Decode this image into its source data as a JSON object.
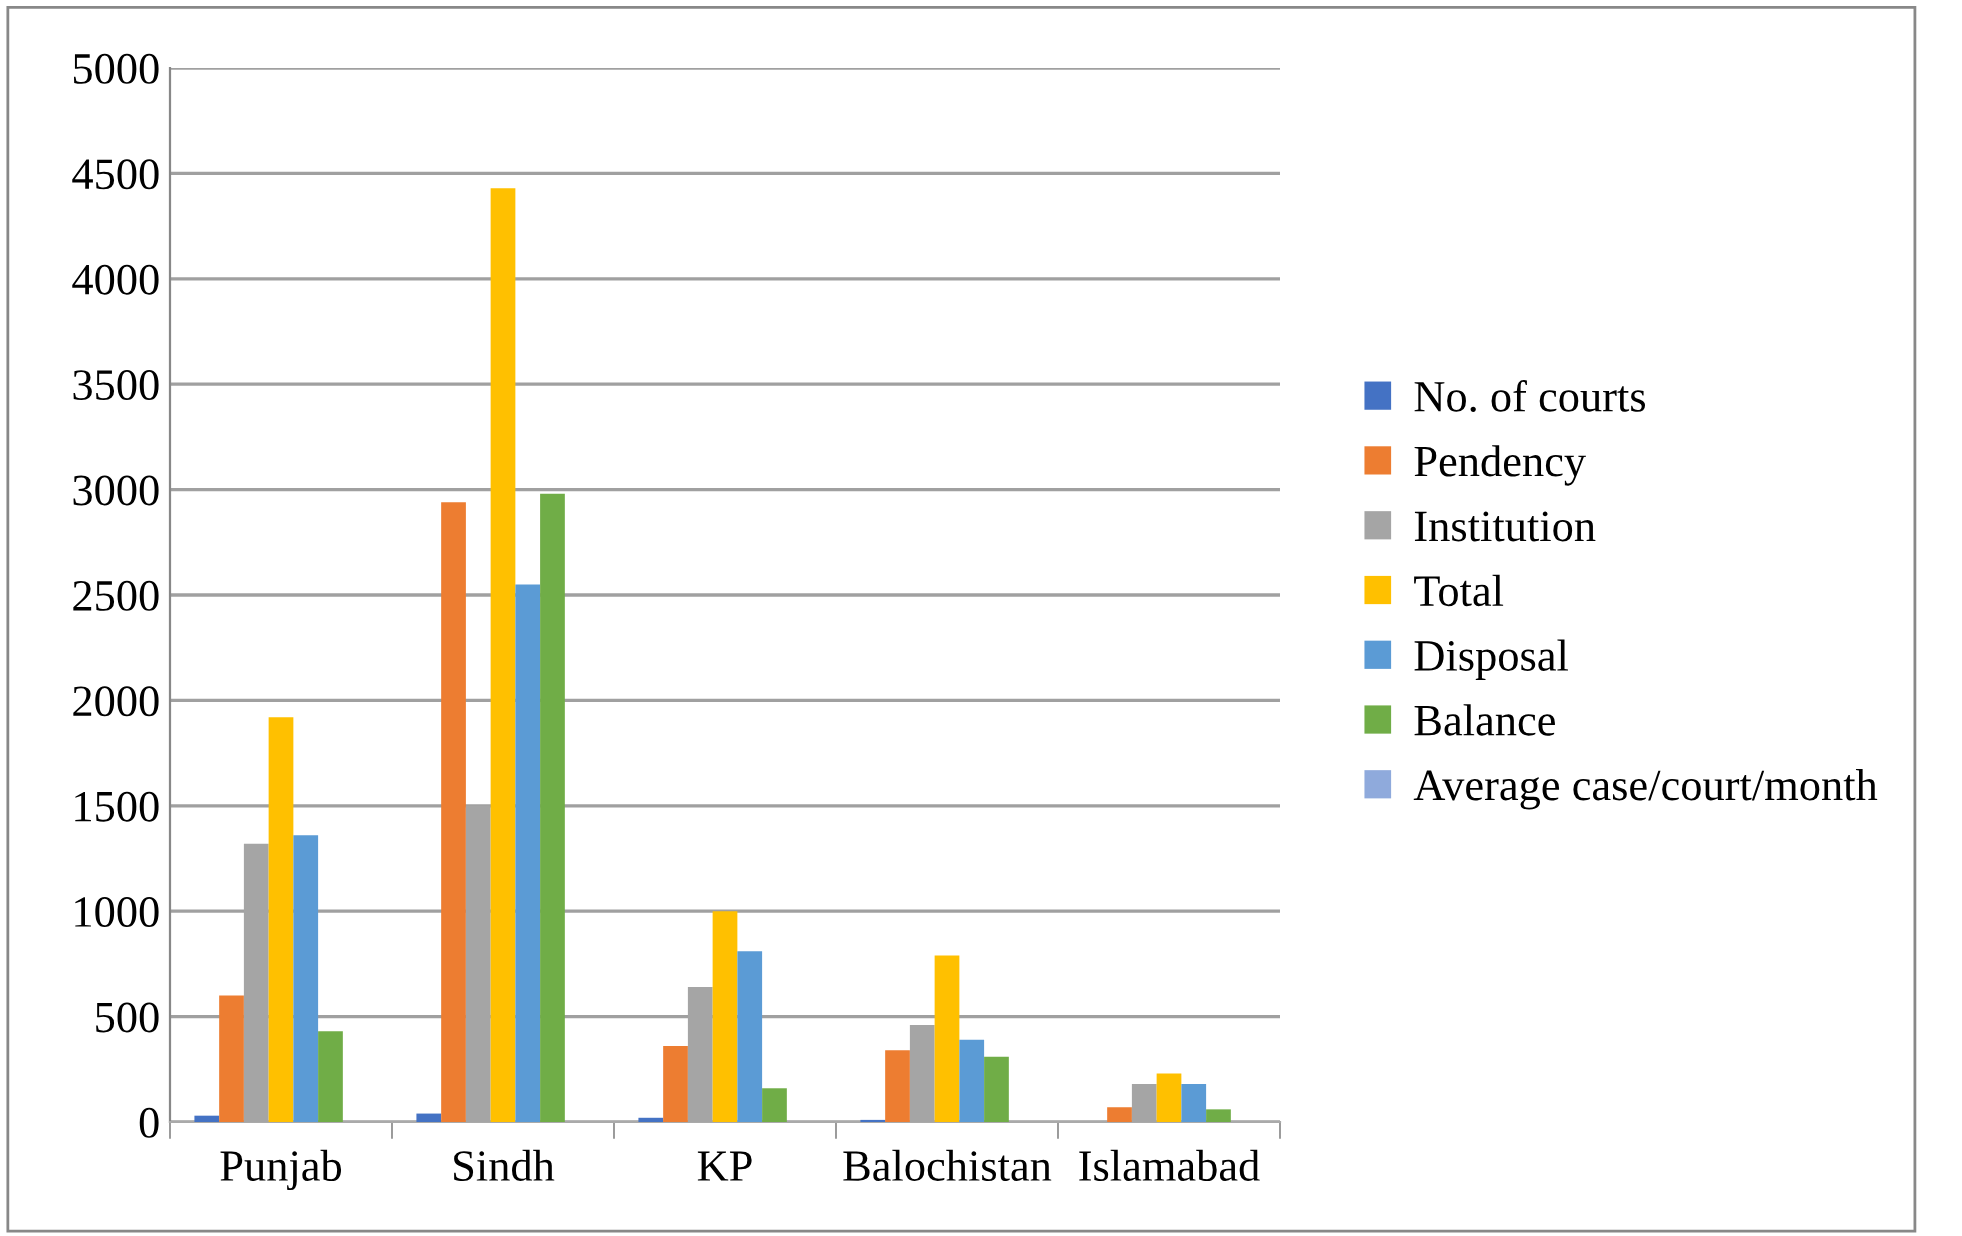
{
  "chart_data": {
    "type": "bar",
    "categories": [
      "Punjab",
      "Sindh",
      "KP",
      "Balochistan",
      "Islamabad"
    ],
    "series": [
      {
        "name": "No. of courts",
        "color": "#4472c4",
        "values": [
          30,
          40,
          20,
          10,
          null
        ]
      },
      {
        "name": "Pendency",
        "color": "#ed7d31",
        "values": [
          600,
          2940,
          360,
          340,
          70
        ]
      },
      {
        "name": "Institution",
        "color": "#a5a5a5",
        "values": [
          1320,
          1500,
          640,
          460,
          180
        ]
      },
      {
        "name": "Total",
        "color": "#ffc000",
        "values": [
          1920,
          4430,
          1000,
          790,
          230
        ]
      },
      {
        "name": "Disposal",
        "color": "#5b9bd5",
        "values": [
          1360,
          2550,
          810,
          390,
          180
        ]
      },
      {
        "name": "Balance",
        "color": "#70ad47",
        "values": [
          430,
          2980,
          160,
          310,
          60
        ]
      },
      {
        "name": "Average case/court/month",
        "color": "#8faadc",
        "values": [
          null,
          null,
          null,
          null,
          null
        ]
      }
    ],
    "ylim": [
      0,
      5000
    ],
    "yticks": [
      0,
      500,
      1000,
      1500,
      2000,
      2500,
      3000,
      3500,
      4000,
      4500,
      5000
    ],
    "grid": "y",
    "legend": "right"
  }
}
